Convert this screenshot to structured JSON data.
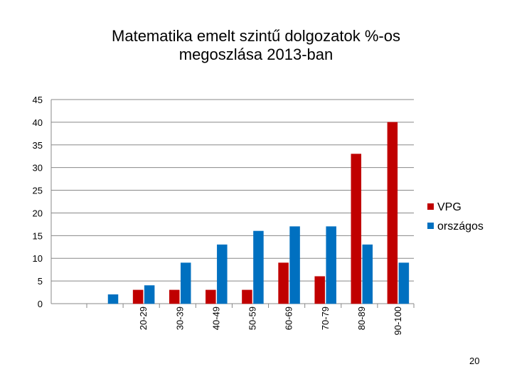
{
  "chart_data": {
    "type": "bar",
    "title": [
      "Matematika emelt szintű dolgozatok %-os",
      "megoszlása 2013-ban"
    ],
    "categories": [
      "",
      "20-29",
      "30-39",
      "40-49",
      "50-59",
      "60-69",
      "70-79",
      "80-89",
      "90-100"
    ],
    "series": [
      {
        "name": "VPG",
        "color": "#c00000",
        "values": [
          0,
          3,
          3,
          3,
          3,
          9,
          6,
          33,
          40
        ]
      },
      {
        "name": "országos",
        "color": "#0070c0",
        "values": [
          2,
          4,
          9,
          13,
          16,
          17,
          17,
          13,
          9
        ]
      }
    ],
    "ylim": [
      0,
      45
    ],
    "yticks": [
      0,
      5,
      10,
      15,
      20,
      25,
      30,
      35,
      40,
      45
    ],
    "grid": true,
    "legend": "right"
  },
  "slide_number": "20"
}
